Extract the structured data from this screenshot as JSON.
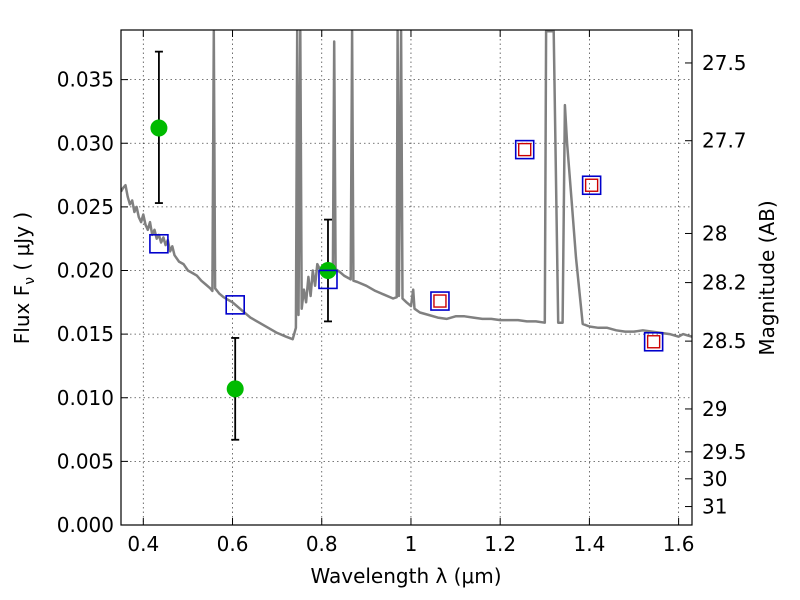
{
  "chart_data": {
    "type": "scatter",
    "xlabel": "Wavelength  λ (μm)",
    "ylabel": "Flux  F",
    "ylabel_sub": "ν",
    "ylabel_unit": " ( μJy )",
    "y2label": "Magnitude (AB)",
    "xlim": [
      0.35,
      1.63
    ],
    "ylim": [
      0.0,
      0.0389
    ],
    "grid": true,
    "x_ticks": [
      {
        "v": 0.4,
        "label": "0.4"
      },
      {
        "v": 0.6,
        "label": "0.6"
      },
      {
        "v": 0.8,
        "label": "0.8"
      },
      {
        "v": 1.0,
        "label": "1"
      },
      {
        "v": 1.2,
        "label": "1.2"
      },
      {
        "v": 1.4,
        "label": "1.4"
      },
      {
        "v": 1.6,
        "label": "1.6"
      }
    ],
    "y_ticks": [
      {
        "v": 0.0,
        "label": "0.000"
      },
      {
        "v": 0.005,
        "label": "0.005"
      },
      {
        "v": 0.01,
        "label": "0.010"
      },
      {
        "v": 0.015,
        "label": "0.015"
      },
      {
        "v": 0.02,
        "label": "0.020"
      },
      {
        "v": 0.025,
        "label": "0.025"
      },
      {
        "v": 0.03,
        "label": "0.030"
      },
      {
        "v": 0.035,
        "label": "0.035"
      }
    ],
    "y2_ticks": [
      {
        "flux": 0.03631,
        "label": "27.5"
      },
      {
        "flux": 0.0302,
        "label": "27.7"
      },
      {
        "flux": 0.02291,
        "label": "28"
      },
      {
        "flux": 0.01905,
        "label": "28.2"
      },
      {
        "flux": 0.01445,
        "label": "28.5"
      },
      {
        "flux": 0.00912,
        "label": "29"
      },
      {
        "flux": 0.00575,
        "label": "29.5"
      },
      {
        "flux": 0.00363,
        "label": "30"
      },
      {
        "flux": 0.00145,
        "label": "31"
      }
    ],
    "series": [
      {
        "kind": "line",
        "color": "#808080",
        "points": [
          [
            0.35,
            0.0262
          ],
          [
            0.355,
            0.0265
          ],
          [
            0.36,
            0.0267
          ],
          [
            0.365,
            0.0258
          ],
          [
            0.37,
            0.0252
          ],
          [
            0.375,
            0.0255
          ],
          [
            0.38,
            0.0246
          ],
          [
            0.385,
            0.025
          ],
          [
            0.39,
            0.0242
          ],
          [
            0.395,
            0.0238
          ],
          [
            0.4,
            0.0244
          ],
          [
            0.405,
            0.0236
          ],
          [
            0.41,
            0.0232
          ],
          [
            0.415,
            0.0238
          ],
          [
            0.42,
            0.0228
          ],
          [
            0.425,
            0.0232
          ],
          [
            0.43,
            0.0225
          ],
          [
            0.435,
            0.0228
          ],
          [
            0.44,
            0.0222
          ],
          [
            0.445,
            0.0226
          ],
          [
            0.45,
            0.022
          ],
          [
            0.455,
            0.0224
          ],
          [
            0.46,
            0.0215
          ],
          [
            0.465,
            0.0219
          ],
          [
            0.47,
            0.0212
          ],
          [
            0.48,
            0.0207
          ],
          [
            0.49,
            0.0205
          ],
          [
            0.5,
            0.02
          ],
          [
            0.51,
            0.0198
          ],
          [
            0.52,
            0.0196
          ],
          [
            0.53,
            0.0192
          ],
          [
            0.54,
            0.0189
          ],
          [
            0.55,
            0.0186
          ],
          [
            0.555,
            0.0184
          ],
          [
            0.558,
            0.0388
          ],
          [
            0.561,
            0.0186
          ],
          [
            0.57,
            0.0182
          ],
          [
            0.58,
            0.0179
          ],
          [
            0.59,
            0.0177
          ],
          [
            0.6,
            0.0175
          ],
          [
            0.62,
            0.0169
          ],
          [
            0.64,
            0.0163
          ],
          [
            0.66,
            0.0159
          ],
          [
            0.68,
            0.0155
          ],
          [
            0.7,
            0.0151
          ],
          [
            0.72,
            0.0148
          ],
          [
            0.735,
            0.0146
          ],
          [
            0.742,
            0.0155
          ],
          [
            0.745,
            0.0388
          ],
          [
            0.748,
            0.0165
          ],
          [
            0.752,
            0.0388
          ],
          [
            0.755,
            0.017
          ],
          [
            0.76,
            0.0185
          ],
          [
            0.765,
            0.0175
          ],
          [
            0.77,
            0.0195
          ],
          [
            0.775,
            0.018
          ],
          [
            0.78,
            0.02
          ],
          [
            0.785,
            0.0188
          ],
          [
            0.79,
            0.0205
          ],
          [
            0.8,
            0.0198
          ],
          [
            0.81,
            0.0203
          ],
          [
            0.815,
            0.02
          ],
          [
            0.82,
            0.0203
          ],
          [
            0.825,
            0.0201
          ],
          [
            0.828,
            0.038
          ],
          [
            0.831,
            0.0201
          ],
          [
            0.84,
            0.0199
          ],
          [
            0.85,
            0.0196
          ],
          [
            0.86,
            0.0194
          ],
          [
            0.865,
            0.0193
          ],
          [
            0.868,
            0.0388
          ],
          [
            0.871,
            0.0192
          ],
          [
            0.88,
            0.0191
          ],
          [
            0.9,
            0.0188
          ],
          [
            0.92,
            0.0184
          ],
          [
            0.94,
            0.0181
          ],
          [
            0.96,
            0.0178
          ],
          [
            0.968,
            0.0179
          ],
          [
            0.97,
            0.0388
          ],
          [
            0.973,
            0.018
          ],
          [
            0.978,
            0.0388
          ],
          [
            0.981,
            0.0178
          ],
          [
            0.99,
            0.0175
          ],
          [
            1.0,
            0.0172
          ],
          [
            1.005,
            0.0185
          ],
          [
            1.008,
            0.017
          ],
          [
            1.02,
            0.0167
          ],
          [
            1.04,
            0.0165
          ],
          [
            1.06,
            0.0163
          ],
          [
            1.08,
            0.0162
          ],
          [
            1.1,
            0.0164
          ],
          [
            1.12,
            0.0164
          ],
          [
            1.14,
            0.0163
          ],
          [
            1.16,
            0.0162
          ],
          [
            1.18,
            0.0162
          ],
          [
            1.2,
            0.0161
          ],
          [
            1.22,
            0.0161
          ],
          [
            1.24,
            0.0161
          ],
          [
            1.26,
            0.016
          ],
          [
            1.28,
            0.016
          ],
          [
            1.3,
            0.0159
          ],
          [
            1.303,
            0.0388
          ],
          [
            1.32,
            0.0388
          ],
          [
            1.33,
            0.0159
          ],
          [
            1.34,
            0.0159
          ],
          [
            1.345,
            0.033
          ],
          [
            1.35,
            0.03
          ],
          [
            1.36,
            0.0255
          ],
          [
            1.37,
            0.021
          ],
          [
            1.38,
            0.0175
          ],
          [
            1.385,
            0.0158
          ],
          [
            1.4,
            0.0156
          ],
          [
            1.42,
            0.0155
          ],
          [
            1.44,
            0.0155
          ],
          [
            1.46,
            0.0153
          ],
          [
            1.48,
            0.0152
          ],
          [
            1.5,
            0.0152
          ],
          [
            1.52,
            0.0153
          ],
          [
            1.54,
            0.0152
          ],
          [
            1.56,
            0.0151
          ],
          [
            1.58,
            0.015
          ],
          [
            1.6,
            0.0148
          ],
          [
            1.61,
            0.015
          ],
          [
            1.62,
            0.0149
          ],
          [
            1.63,
            0.0148
          ]
        ]
      },
      {
        "kind": "errorbar",
        "color": "#00bb00",
        "points": [
          {
            "x": 0.435,
            "y": 0.0312,
            "ylo": 0.0253,
            "yhi": 0.0372
          },
          {
            "x": 0.606,
            "y": 0.0107,
            "ylo": 0.0067,
            "yhi": 0.0147
          },
          {
            "x": 0.814,
            "y": 0.02,
            "ylo": 0.016,
            "yhi": 0.024
          }
        ]
      },
      {
        "kind": "square",
        "color": "#0000cc",
        "points": [
          [
            0.435,
            0.0221
          ],
          [
            0.606,
            0.0173
          ],
          [
            0.814,
            0.0193
          ],
          [
            1.065,
            0.0176
          ],
          [
            1.255,
            0.0295
          ],
          [
            1.405,
            0.0267
          ],
          [
            1.544,
            0.0144
          ]
        ]
      },
      {
        "kind": "square",
        "color": "#cc0000",
        "points": [
          [
            1.065,
            0.0176
          ],
          [
            1.255,
            0.0295
          ],
          [
            1.405,
            0.0267
          ],
          [
            1.544,
            0.0144
          ]
        ]
      }
    ]
  }
}
